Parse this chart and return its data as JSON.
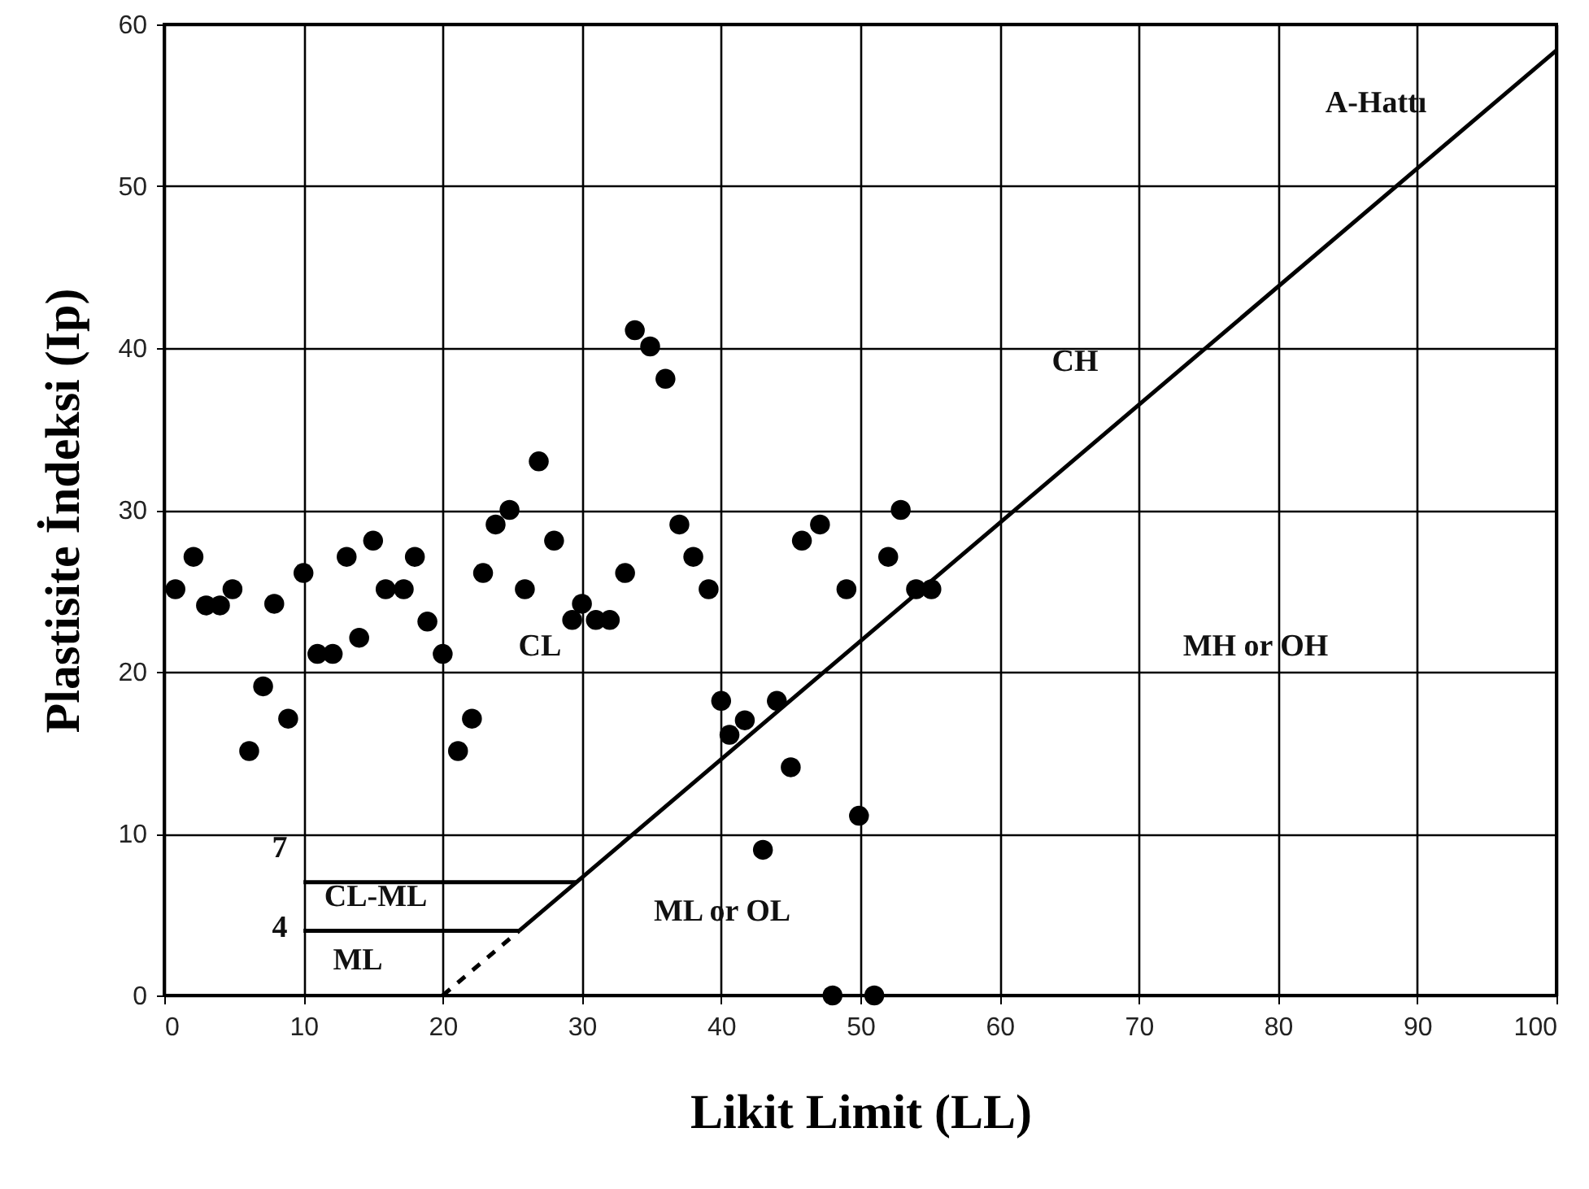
{
  "chart_data": {
    "type": "scatter",
    "xlabel": "Likit Limit (LL)",
    "ylabel": "Plastisite İndeksi (Ip)",
    "xlim": [
      0,
      100
    ],
    "ylim": [
      0,
      60
    ],
    "xticks": [
      0,
      10,
      20,
      30,
      40,
      50,
      60,
      70,
      80,
      90,
      100
    ],
    "yticks": [
      0,
      10,
      20,
      30,
      40,
      50,
      60
    ],
    "grid": true,
    "series": [
      {
        "color": "#000000",
        "marker": "circle",
        "x": [
          0.8,
          2.1,
          3,
          4,
          4.9,
          6.1,
          7.1,
          7.9,
          8.9,
          10,
          11,
          12.1,
          13.1,
          14,
          15,
          15.9,
          17.2,
          18,
          18.9,
          20,
          21.1,
          22.1,
          22.9,
          23.8,
          24.8,
          25.9,
          26.9,
          28,
          29.3,
          30,
          31,
          32,
          33.1,
          33.8,
          34.9,
          36,
          37,
          38,
          39.1,
          40,
          40.6,
          41.7,
          43,
          44,
          45,
          45.8,
          47.1,
          48,
          49,
          49.9,
          51,
          52,
          52.9,
          54,
          55.1
        ],
        "values": [
          25.1,
          27.1,
          24.1,
          24.1,
          25.1,
          15.1,
          19.1,
          24.2,
          17.1,
          26.1,
          21.1,
          21.1,
          27.1,
          22.1,
          28.1,
          25.1,
          25.1,
          27.1,
          23.1,
          21.1,
          15.1,
          17.1,
          26.1,
          29.1,
          30,
          25.1,
          33,
          28.1,
          23.2,
          24.2,
          23.2,
          23.2,
          26.1,
          41.1,
          40.1,
          38.1,
          29.1,
          27.1,
          25.1,
          18.2,
          16.1,
          17,
          9,
          18.2,
          14.1,
          28.1,
          29.1,
          0,
          25.1,
          11.1,
          0,
          27.1,
          30,
          25.1,
          25.1
        ]
      },
      {
        "type": "line",
        "color": "#000000",
        "line_style": "solid",
        "x": [
          25.5,
          100
        ],
        "values": [
          4,
          58.4
        ]
      },
      {
        "type": "line",
        "color": "#000000",
        "line_style": "dashed",
        "x": [
          20,
          25.5
        ],
        "values": [
          0,
          4
        ]
      },
      {
        "type": "line",
        "color": "#000000",
        "line_style": "solid",
        "x": [
          10,
          29.6
        ],
        "values": [
          7,
          7
        ]
      },
      {
        "type": "line",
        "color": "#000000",
        "line_style": "solid",
        "x": [
          10,
          25.5
        ],
        "values": [
          4,
          4
        ]
      }
    ],
    "annotations": [
      "A-Hattı",
      "CH",
      "CL",
      "MH or OH",
      "ML or OL",
      "CL-ML",
      "ML",
      "7",
      "4"
    ]
  }
}
